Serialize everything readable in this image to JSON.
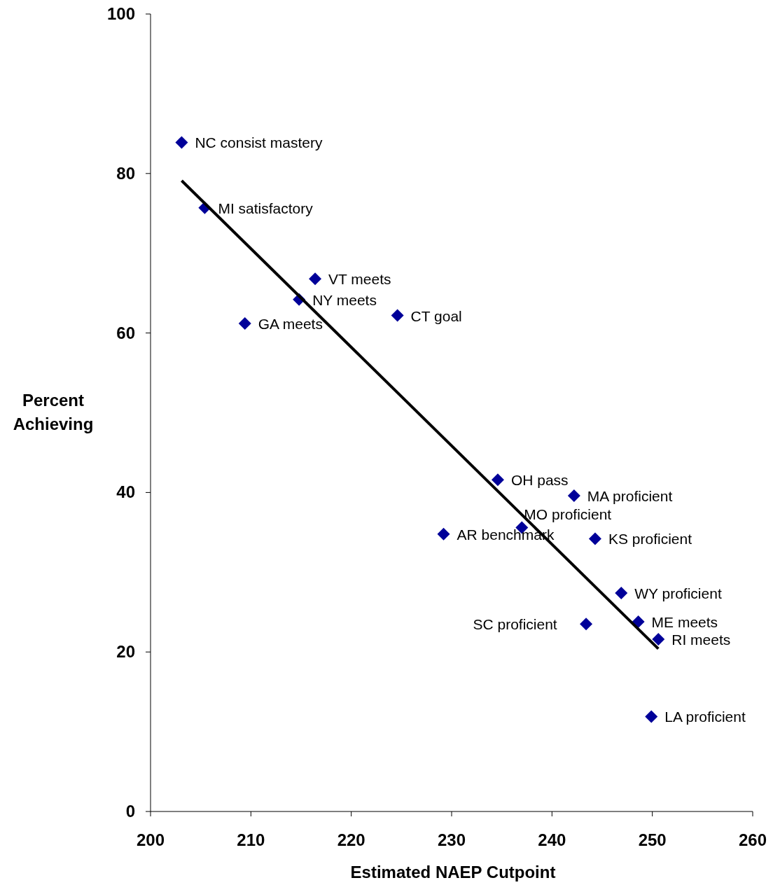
{
  "chart_data": {
    "type": "scatter",
    "xlabel": "Estimated NAEP Cutpoint",
    "ylabel": "Percent Achieving",
    "xlim": [
      200,
      260
    ],
    "xticks": [
      200,
      210,
      220,
      230,
      240,
      250,
      260
    ],
    "ylim": [
      0,
      100
    ],
    "yticks": [
      0,
      20,
      40,
      60,
      80,
      100
    ],
    "grid": false,
    "marker": "diamond",
    "series": [
      {
        "color": "#000099",
        "x": [
          203.1,
          205.4,
          216.4,
          214.8,
          209.4,
          224.6,
          234.6,
          242.2,
          237.0,
          229.2,
          244.3,
          246.9,
          243.4,
          248.6,
          250.6,
          249.9
        ],
        "values": [
          83.9,
          75.7,
          66.8,
          64.2,
          61.2,
          62.2,
          41.6,
          39.6,
          35.6,
          34.8,
          34.2,
          27.4,
          23.5,
          23.8,
          21.6,
          11.9
        ]
      },
      {
        "type": "line",
        "marker": "none",
        "color": "#000000",
        "x": [
          203.1,
          250.6
        ],
        "values": [
          79.1,
          20.4
        ]
      }
    ],
    "annotations": [
      {
        "text": "NC consist mastery",
        "x": 203.1,
        "y": 83.9
      },
      {
        "text": "MI satisfactory",
        "x": 205.4,
        "y": 75.7
      },
      {
        "text": "VT meets",
        "x": 216.4,
        "y": 66.8
      },
      {
        "text": "NY meets",
        "x": 214.8,
        "y": 64.2
      },
      {
        "text": "GA meets",
        "x": 209.4,
        "y": 61.2
      },
      {
        "text": "CT goal",
        "x": 224.6,
        "y": 62.2
      },
      {
        "text": "OH pass",
        "x": 234.6,
        "y": 41.6
      },
      {
        "text": "MA proficient",
        "x": 242.2,
        "y": 39.6
      },
      {
        "text": "MO proficient",
        "x": 237.0,
        "y": 35.6
      },
      {
        "text": "AR benchmark",
        "x": 229.2,
        "y": 34.8
      },
      {
        "text": "KS proficient",
        "x": 244.3,
        "y": 34.2
      },
      {
        "text": "WY proficient",
        "x": 246.9,
        "y": 27.4
      },
      {
        "text": "SC proficient",
        "x": 243.4,
        "y": 23.5
      },
      {
        "text": "ME meets",
        "x": 248.6,
        "y": 23.8
      },
      {
        "text": "RI meets",
        "x": 250.6,
        "y": 21.6
      },
      {
        "text": "LA proficient",
        "x": 249.9,
        "y": 11.9
      }
    ]
  }
}
